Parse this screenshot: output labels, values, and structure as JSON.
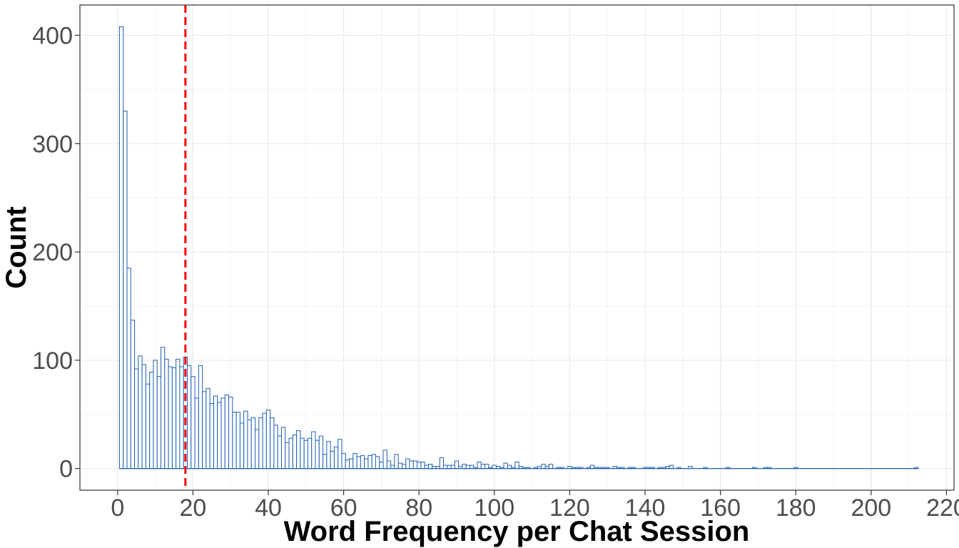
{
  "chart_data": {
    "type": "bar",
    "xlabel": "Word Frequency per Chat Session",
    "ylabel": "Count",
    "xlim": [
      -10,
      222
    ],
    "ylim": [
      -20,
      428
    ],
    "x_ticks": [
      0,
      20,
      40,
      60,
      80,
      100,
      120,
      140,
      160,
      180,
      200,
      220
    ],
    "y_ticks": [
      0,
      100,
      200,
      300,
      400
    ],
    "grid": true,
    "bar_outline_color": "#1f5fb4",
    "bar_fill_color": "#ffffff",
    "reference_line": {
      "x": 18,
      "color": "#ff0000",
      "style": "dashed"
    },
    "bins": [
      {
        "x": 1,
        "count": 408
      },
      {
        "x": 2,
        "count": 330
      },
      {
        "x": 3,
        "count": 185
      },
      {
        "x": 4,
        "count": 137
      },
      {
        "x": 5,
        "count": 92
      },
      {
        "x": 6,
        "count": 104
      },
      {
        "x": 7,
        "count": 96
      },
      {
        "x": 8,
        "count": 78
      },
      {
        "x": 9,
        "count": 89
      },
      {
        "x": 10,
        "count": 100
      },
      {
        "x": 11,
        "count": 85
      },
      {
        "x": 12,
        "count": 112
      },
      {
        "x": 13,
        "count": 101
      },
      {
        "x": 14,
        "count": 94
      },
      {
        "x": 15,
        "count": 93
      },
      {
        "x": 16,
        "count": 101
      },
      {
        "x": 17,
        "count": 94
      },
      {
        "x": 18,
        "count": 103
      },
      {
        "x": 19,
        "count": 95
      },
      {
        "x": 20,
        "count": 85
      },
      {
        "x": 21,
        "count": 65
      },
      {
        "x": 22,
        "count": 95
      },
      {
        "x": 23,
        "count": 71
      },
      {
        "x": 24,
        "count": 74
      },
      {
        "x": 25,
        "count": 60
      },
      {
        "x": 26,
        "count": 67
      },
      {
        "x": 27,
        "count": 61
      },
      {
        "x": 28,
        "count": 65
      },
      {
        "x": 29,
        "count": 68
      },
      {
        "x": 30,
        "count": 66
      },
      {
        "x": 31,
        "count": 52
      },
      {
        "x": 32,
        "count": 52
      },
      {
        "x": 33,
        "count": 42
      },
      {
        "x": 34,
        "count": 53
      },
      {
        "x": 35,
        "count": 45
      },
      {
        "x": 36,
        "count": 47
      },
      {
        "x": 37,
        "count": 36
      },
      {
        "x": 38,
        "count": 47
      },
      {
        "x": 39,
        "count": 51
      },
      {
        "x": 40,
        "count": 54
      },
      {
        "x": 41,
        "count": 47
      },
      {
        "x": 42,
        "count": 40
      },
      {
        "x": 43,
        "count": 30
      },
      {
        "x": 44,
        "count": 38
      },
      {
        "x": 45,
        "count": 24
      },
      {
        "x": 46,
        "count": 28
      },
      {
        "x": 47,
        "count": 31
      },
      {
        "x": 48,
        "count": 35
      },
      {
        "x": 49,
        "count": 28
      },
      {
        "x": 50,
        "count": 26
      },
      {
        "x": 51,
        "count": 28
      },
      {
        "x": 52,
        "count": 34
      },
      {
        "x": 53,
        "count": 26
      },
      {
        "x": 54,
        "count": 30
      },
      {
        "x": 55,
        "count": 13
      },
      {
        "x": 56,
        "count": 25
      },
      {
        "x": 57,
        "count": 16
      },
      {
        "x": 58,
        "count": 20
      },
      {
        "x": 59,
        "count": 27
      },
      {
        "x": 60,
        "count": 14
      },
      {
        "x": 61,
        "count": 8
      },
      {
        "x": 62,
        "count": 9
      },
      {
        "x": 63,
        "count": 14
      },
      {
        "x": 64,
        "count": 11
      },
      {
        "x": 65,
        "count": 12
      },
      {
        "x": 66,
        "count": 9
      },
      {
        "x": 67,
        "count": 12
      },
      {
        "x": 68,
        "count": 13
      },
      {
        "x": 69,
        "count": 11
      },
      {
        "x": 70,
        "count": 6
      },
      {
        "x": 71,
        "count": 17
      },
      {
        "x": 72,
        "count": 7
      },
      {
        "x": 73,
        "count": 3
      },
      {
        "x": 74,
        "count": 13
      },
      {
        "x": 75,
        "count": 5
      },
      {
        "x": 76,
        "count": 4
      },
      {
        "x": 77,
        "count": 9
      },
      {
        "x": 78,
        "count": 7
      },
      {
        "x": 79,
        "count": 7
      },
      {
        "x": 80,
        "count": 6
      },
      {
        "x": 81,
        "count": 6
      },
      {
        "x": 82,
        "count": 3
      },
      {
        "x": 83,
        "count": 4
      },
      {
        "x": 84,
        "count": 2
      },
      {
        "x": 85,
        "count": 2
      },
      {
        "x": 86,
        "count": 10
      },
      {
        "x": 87,
        "count": 3
      },
      {
        "x": 88,
        "count": 3
      },
      {
        "x": 89,
        "count": 3
      },
      {
        "x": 90,
        "count": 7
      },
      {
        "x": 91,
        "count": 2
      },
      {
        "x": 92,
        "count": 4
      },
      {
        "x": 93,
        "count": 3
      },
      {
        "x": 94,
        "count": 3
      },
      {
        "x": 95,
        "count": 1
      },
      {
        "x": 96,
        "count": 6
      },
      {
        "x": 97,
        "count": 4
      },
      {
        "x": 98,
        "count": 4
      },
      {
        "x": 99,
        "count": 1
      },
      {
        "x": 100,
        "count": 3
      },
      {
        "x": 101,
        "count": 2
      },
      {
        "x": 102,
        "count": 1
      },
      {
        "x": 103,
        "count": 5
      },
      {
        "x": 104,
        "count": 3
      },
      {
        "x": 105,
        "count": 1
      },
      {
        "x": 106,
        "count": 6
      },
      {
        "x": 107,
        "count": 2
      },
      {
        "x": 108,
        "count": 1
      },
      {
        "x": 109,
        "count": 1
      },
      {
        "x": 111,
        "count": 1
      },
      {
        "x": 112,
        "count": 2
      },
      {
        "x": 113,
        "count": 4
      },
      {
        "x": 114,
        "count": 2
      },
      {
        "x": 115,
        "count": 4
      },
      {
        "x": 117,
        "count": 1
      },
      {
        "x": 118,
        "count": 1
      },
      {
        "x": 120,
        "count": 2
      },
      {
        "x": 121,
        "count": 1
      },
      {
        "x": 122,
        "count": 1
      },
      {
        "x": 123,
        "count": 1
      },
      {
        "x": 125,
        "count": 1
      },
      {
        "x": 126,
        "count": 3
      },
      {
        "x": 127,
        "count": 1
      },
      {
        "x": 128,
        "count": 1
      },
      {
        "x": 129,
        "count": 1
      },
      {
        "x": 130,
        "count": 1
      },
      {
        "x": 132,
        "count": 2
      },
      {
        "x": 133,
        "count": 1
      },
      {
        "x": 134,
        "count": 1
      },
      {
        "x": 136,
        "count": 1
      },
      {
        "x": 137,
        "count": 1
      },
      {
        "x": 140,
        "count": 1
      },
      {
        "x": 141,
        "count": 1
      },
      {
        "x": 142,
        "count": 1
      },
      {
        "x": 144,
        "count": 1
      },
      {
        "x": 145,
        "count": 1
      },
      {
        "x": 146,
        "count": 2
      },
      {
        "x": 147,
        "count": 3
      },
      {
        "x": 149,
        "count": 1
      },
      {
        "x": 152,
        "count": 2
      },
      {
        "x": 156,
        "count": 1
      },
      {
        "x": 162,
        "count": 1
      },
      {
        "x": 169,
        "count": 1
      },
      {
        "x": 172,
        "count": 1
      },
      {
        "x": 173,
        "count": 1
      },
      {
        "x": 180,
        "count": 1
      },
      {
        "x": 212,
        "count": 1
      }
    ]
  }
}
